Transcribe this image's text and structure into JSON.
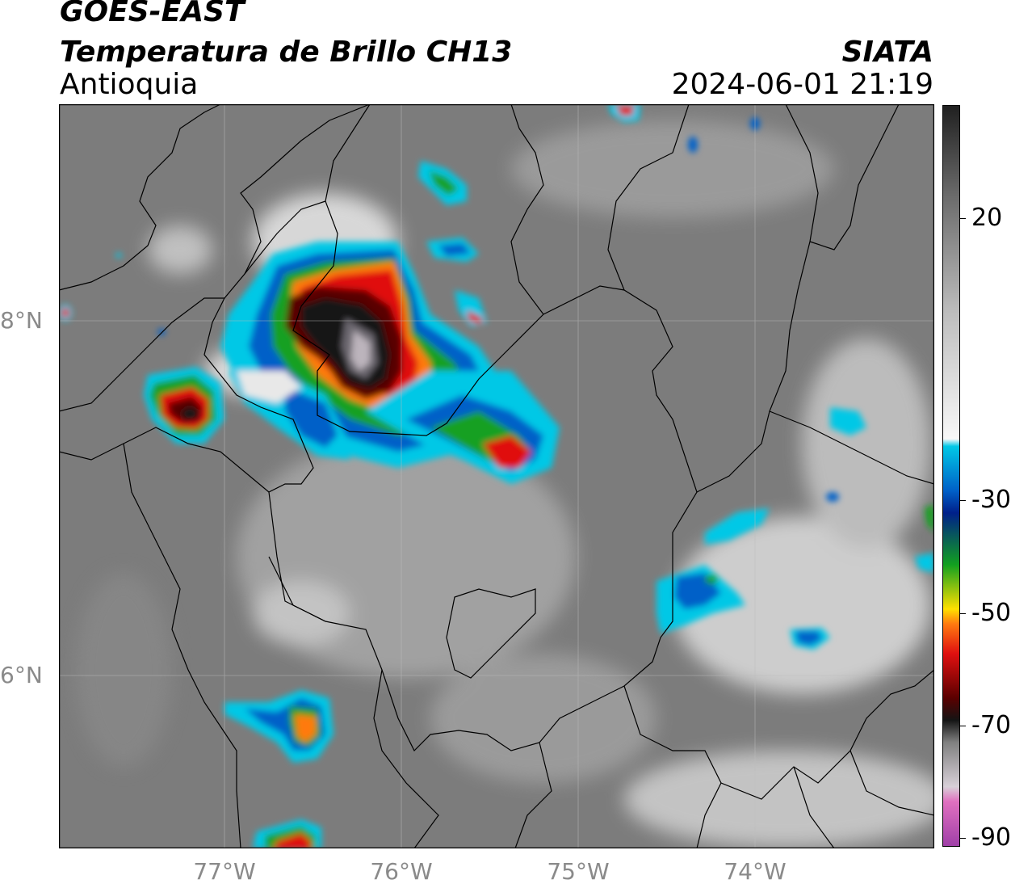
{
  "header": {
    "satellite": "GOES-EAST",
    "product": "Temperatura de Brillo CH13",
    "region": "Antioquia",
    "agency": "SIATA",
    "datetime": "2024-06-01 21:19"
  },
  "axes": {
    "lat_labels": [
      {
        "text": "8°N",
        "lat": 8
      },
      {
        "text": "6°N",
        "lat": 6
      }
    ],
    "lon_labels": [
      {
        "text": "77°W",
        "lon": -77
      },
      {
        "text": "76°W",
        "lon": -76
      },
      {
        "text": "75°W",
        "lon": -75
      },
      {
        "text": "74°W",
        "lon": -74
      }
    ],
    "lon_range": [
      -77.95,
      -73.0
    ],
    "lat_range": [
      5.0,
      9.2
    ],
    "grid": true
  },
  "colorbar": {
    "labels": [
      "20",
      "-30",
      "-50",
      "-70",
      "-90"
    ],
    "range": [
      -92,
      35
    ],
    "colors": {
      "magenta": "#a040a8",
      "pink": "#e070c0",
      "light_gray": "#d8d0d8",
      "black": "#141414",
      "dark_red": "#5a0000",
      "red": "#e01010",
      "orange": "#ff7a10",
      "yellow": "#ffe000",
      "green": "#12a020",
      "navy": "#00208a",
      "blue": "#0060c8",
      "cyan": "#00c8e6",
      "white": "#f8f8f8",
      "gray": "#808080"
    }
  },
  "map_colors": {
    "background_gray": "#7c7c7c",
    "cloud_white": "#e8e8e8",
    "border_line": "#000000"
  }
}
